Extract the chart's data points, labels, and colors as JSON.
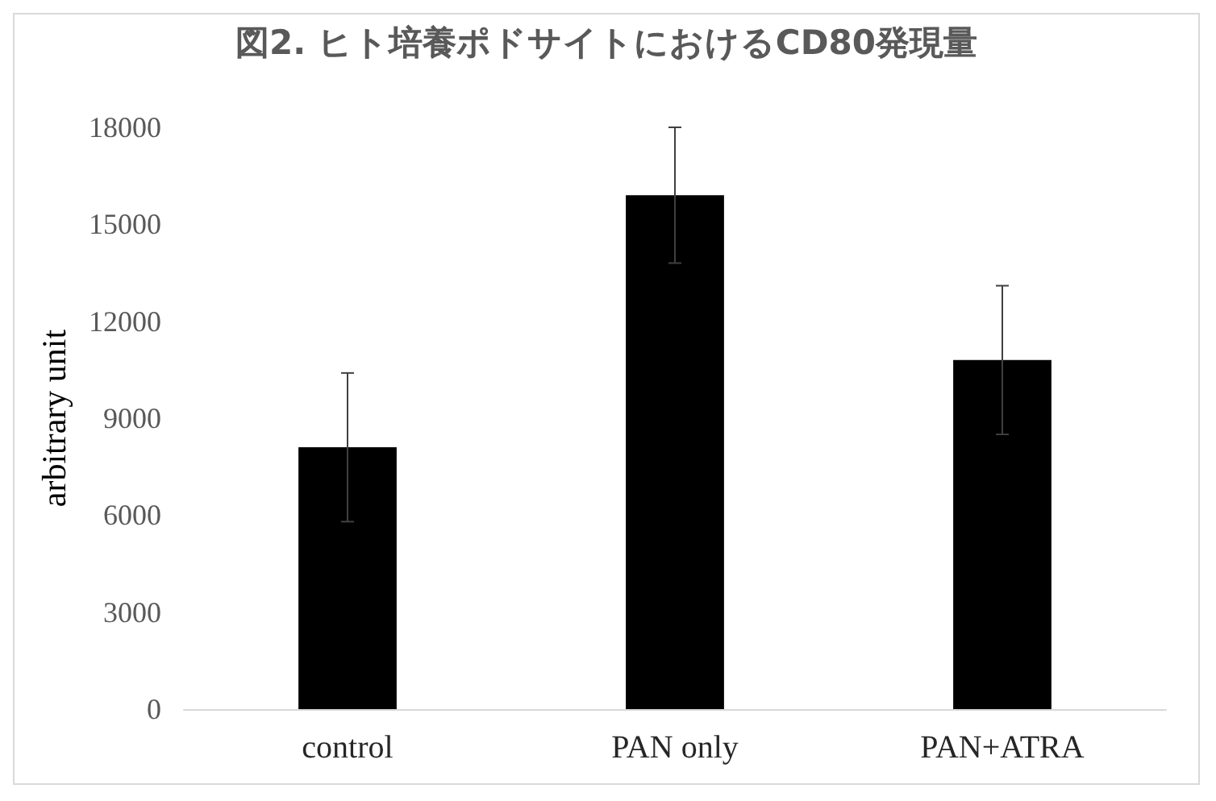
{
  "chart_data": {
    "type": "bar",
    "title": "図2. ヒト培養ポドサイトにおけるCD80発現量",
    "ylabel": "arbitrary unit",
    "categories": [
      "control",
      "PAN only",
      "PAN+ATRA"
    ],
    "values": [
      8100,
      15900,
      10800
    ],
    "errors": [
      2300,
      2100,
      2300
    ],
    "color": "#000000",
    "ylim": [
      0,
      18000
    ],
    "yticks": [
      0,
      3000,
      6000,
      9000,
      12000,
      15000,
      18000
    ],
    "grid": false
  }
}
